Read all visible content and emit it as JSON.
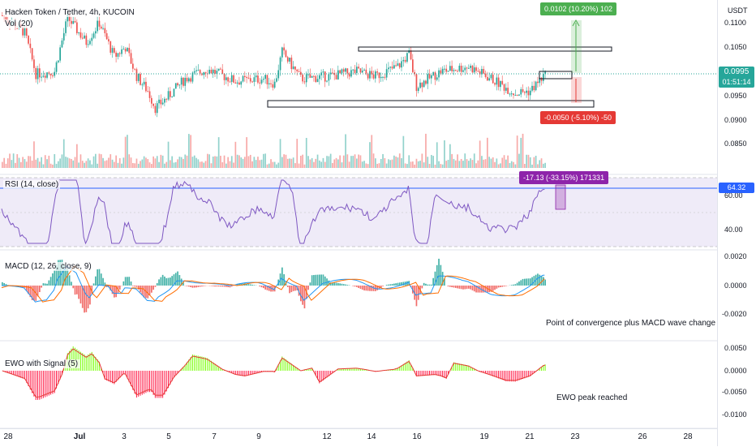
{
  "header": {
    "symbol_title": "Hacken Token / Tether, 4h, KUCOIN",
    "volume_label": "Vol (20)"
  },
  "axis": {
    "currency": "USDT",
    "price_ticks": [
      "0.1100",
      "0.1050",
      "0.0950",
      "0.0900",
      "0.0850"
    ],
    "rsi_ticks": [
      "60.00",
      "40.00"
    ],
    "macd_ticks": [
      "0.0020",
      "0.0000",
      "-0.0020"
    ],
    "ewo_ticks": [
      "0.0050",
      "0.0000",
      "-0.0050",
      "-0.0100"
    ],
    "time_ticks": [
      "28",
      "Jul",
      "3",
      "5",
      "7",
      "9",
      "12",
      "14",
      "16",
      "19",
      "21",
      "23",
      "26",
      "28"
    ]
  },
  "price": {
    "current": "0.0995",
    "countdown": "01:51:14",
    "up_color": "#26a69a",
    "down_color": "#ef5350"
  },
  "position_tool": {
    "target_label": "0.0102 (10.20%) 102",
    "stop_label": "-0.0050 (-5.10%) -50",
    "target_color": "#4caf50",
    "stop_color": "#e53935"
  },
  "rsi": {
    "label": "RSI (14, close)",
    "current": "64.32",
    "measure_label": "-17.13 (-33.15%) 171331",
    "line_color": "#7e57c2"
  },
  "macd": {
    "label": "MACD (12, 26, close, 9)",
    "macd_color": "#2196f3",
    "signal_color": "#ff6d00",
    "annotation": "Point of convergence plus MACD wave change"
  },
  "ewo": {
    "label": "EWO with Signal (5)",
    "annotation": "EWO peak reached"
  }
}
